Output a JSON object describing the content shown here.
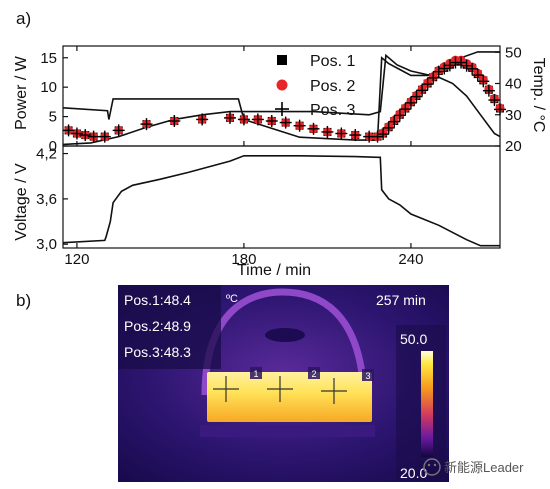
{
  "panel_a": {
    "label": "a)",
    "power_axis": {
      "label": "Power / W",
      "range": [
        0,
        17
      ],
      "ticks": [
        "0",
        "5",
        "10",
        "15"
      ]
    },
    "temp_axis": {
      "label": "Temp. / °C",
      "range": [
        20,
        52
      ],
      "ticks": [
        "20",
        "30",
        "40",
        "50"
      ]
    },
    "voltage_axis": {
      "label": "Voltage / V",
      "range": [
        2.95,
        4.3
      ],
      "ticks": [
        "3,0",
        "3,6",
        "4,2"
      ]
    },
    "time_axis": {
      "label": "Time / min",
      "range": [
        115,
        272
      ],
      "ticks": [
        "120",
        "180",
        "240"
      ]
    },
    "legend": [
      {
        "label": "Pos. 1",
        "marker": "square"
      },
      {
        "label": "Pos. 2",
        "marker": "circle"
      },
      {
        "label": "Pos. 3",
        "marker": "plus"
      }
    ]
  },
  "panel_b": {
    "label": "b)",
    "readouts": [
      "Pos.1:48.4",
      "Pos.2:48.9",
      "Pos.3:48.3"
    ],
    "unit": "ºC",
    "time_text": "257 min",
    "scale_max": "50.0",
    "scale_min": "20.0",
    "markers": [
      "1",
      "2",
      "3"
    ]
  },
  "watermark": "新能源Leader",
  "colors": {
    "pos1": "#000000",
    "pos2": "#e8262a",
    "pos3": "#000000"
  },
  "chart_data": [
    {
      "type": "line",
      "title": "",
      "xlabel": "Time / min",
      "ylabel": "Power / W",
      "y2label": "Temp. / °C",
      "xlim": [
        115,
        272
      ],
      "ylim": [
        0,
        17
      ],
      "y2lim": [
        20,
        52
      ],
      "series": [
        {
          "name": "",
          "axis": "power",
          "x": [
            115,
            131,
            131.5,
            133,
            178,
            180,
            200,
            220,
            228,
            229.5,
            232,
            236,
            240,
            246,
            252,
            258,
            264,
            270,
            272
          ],
          "y": [
            6.5,
            6,
            4.5,
            8,
            8,
            4.5,
            1.5,
            1,
            1,
            15,
            14,
            13,
            12,
            12,
            13,
            15,
            16,
            16,
            16
          ]
        },
        {
          "name": "",
          "axis": "temp",
          "x": [
            115,
            125,
            135,
            145,
            155,
            165,
            175,
            185,
            195,
            205,
            215,
            225,
            229,
            231,
            235,
            240,
            245,
            250,
            255,
            260,
            265,
            270,
            272
          ],
          "y": [
            20.5,
            21,
            23,
            26,
            28.5,
            30,
            31,
            31,
            31,
            31,
            30.5,
            30,
            31,
            49,
            46,
            44,
            43,
            42,
            40,
            36,
            30,
            24,
            23
          ]
        },
        {
          "name": "Pos. 1",
          "axis": "temp",
          "x": [
            117,
            120,
            123,
            126,
            130,
            135,
            145,
            155,
            165,
            175,
            180,
            185,
            190,
            195,
            200,
            205,
            210,
            215,
            220,
            225,
            228,
            230,
            232,
            234,
            236,
            238,
            240,
            242,
            244,
            246,
            248,
            250,
            252,
            254,
            256,
            258,
            260,
            262,
            264,
            266,
            268,
            270,
            272
          ],
          "y": [
            25,
            24,
            23.5,
            23,
            23,
            25,
            27,
            28,
            28.5,
            29,
            28.5,
            28.5,
            28,
            27.5,
            26.5,
            25.5,
            24.5,
            24,
            23.5,
            23,
            23,
            24,
            26,
            28,
            30,
            32,
            34,
            36,
            38,
            40,
            42,
            44,
            45,
            46,
            47,
            47,
            46,
            45,
            43,
            41,
            38,
            35,
            32
          ]
        },
        {
          "name": "Pos. 2",
          "axis": "temp",
          "x": [
            117,
            120,
            123,
            126,
            130,
            135,
            145,
            155,
            165,
            175,
            180,
            185,
            190,
            195,
            200,
            205,
            210,
            215,
            220,
            225,
            228,
            230,
            232,
            234,
            236,
            238,
            240,
            242,
            244,
            246,
            248,
            250,
            252,
            254,
            256,
            258,
            260,
            262,
            264,
            266,
            268,
            270,
            272
          ],
          "y": [
            25,
            24,
            23.5,
            23,
            23,
            25,
            27,
            28,
            28.5,
            29,
            28.5,
            28.5,
            28,
            27.5,
            26.5,
            25.5,
            24.5,
            24,
            23.5,
            23,
            23,
            24.2,
            26.2,
            28.2,
            30.2,
            32.2,
            34.2,
            36.2,
            38.2,
            40.2,
            42.2,
            44.2,
            45.4,
            46.5,
            47.5,
            47.5,
            46.4,
            45.3,
            43.3,
            41.2,
            38.2,
            35.2,
            32.2
          ]
        },
        {
          "name": "Pos. 3",
          "axis": "temp",
          "x": [
            117,
            120,
            123,
            126,
            130,
            135,
            145,
            155,
            165,
            175,
            180,
            185,
            190,
            195,
            200,
            205,
            210,
            215,
            220,
            225,
            228,
            230,
            232,
            234,
            236,
            238,
            240,
            242,
            244,
            246,
            248,
            250,
            252,
            254,
            256,
            258,
            260,
            262,
            264,
            266,
            268,
            270,
            272
          ],
          "y": [
            25,
            24,
            23.5,
            23,
            23,
            25,
            27,
            28,
            28.5,
            29,
            28.5,
            28.5,
            28,
            27.5,
            26.5,
            25.5,
            24.5,
            24,
            23.5,
            23,
            23,
            23.8,
            25.8,
            27.8,
            29.8,
            31.8,
            33.8,
            35.8,
            37.8,
            39.8,
            41.8,
            43.8,
            44.8,
            45.8,
            46.7,
            46.7,
            45.7,
            44.7,
            42.7,
            40.7,
            37.7,
            34.7,
            31.7
          ]
        }
      ]
    },
    {
      "type": "line",
      "title": "",
      "xlabel": "Time / min",
      "ylabel": "Voltage / V",
      "xlim": [
        115,
        272
      ],
      "ylim": [
        2.95,
        4.3
      ],
      "series": [
        {
          "name": "",
          "x": [
            115,
            130,
            130.5,
            132,
            133,
            136,
            140,
            150,
            160,
            170,
            175,
            180,
            200,
            220,
            228,
            229,
            229.5,
            232,
            236,
            240,
            250,
            260,
            265,
            272
          ],
          "y": [
            3.02,
            3.05,
            3.1,
            3.3,
            3.55,
            3.7,
            3.78,
            3.86,
            3.95,
            4.05,
            4.1,
            4.17,
            4.17,
            4.16,
            4.15,
            4.15,
            3.72,
            3.6,
            3.52,
            3.4,
            3.25,
            3.06,
            2.98,
            2.98
          ]
        }
      ]
    }
  ]
}
